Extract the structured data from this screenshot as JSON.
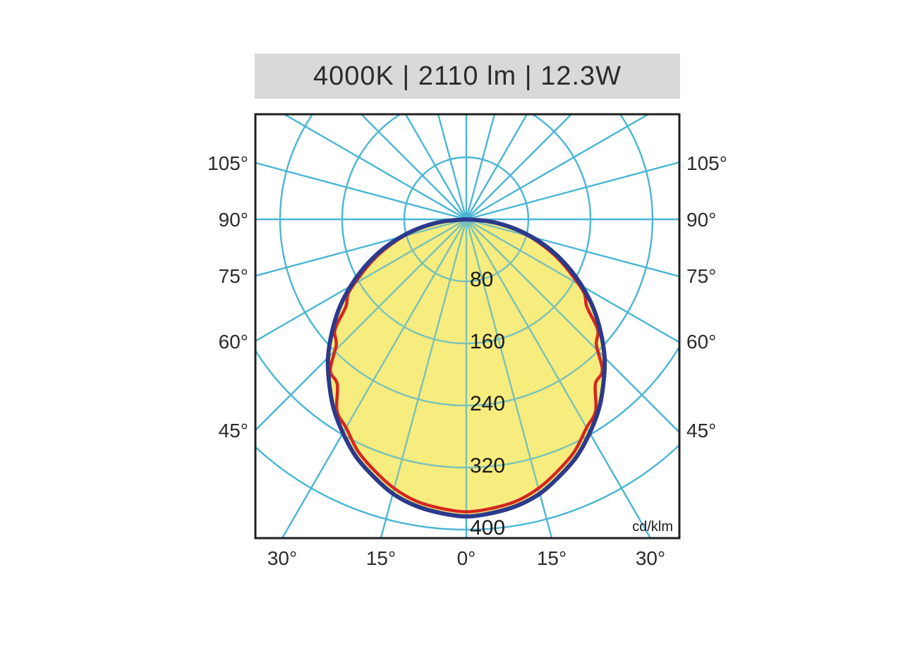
{
  "title_bar": {
    "label": "4000K | 2110 lm | 12.3W"
  },
  "chart_data": {
    "type": "polar_photometric",
    "title": "4000K | 2110 lm | 12.3W",
    "unit_label": "cd/klm",
    "angle_grid_step_deg": 15,
    "side_angle_values": [
      105,
      90,
      75,
      60,
      45
    ],
    "side_angle_labels": [
      "105°",
      "90°",
      "75°",
      "60°",
      "45°"
    ],
    "bottom_angle_values": [
      -30,
      -15,
      0,
      15,
      30
    ],
    "bottom_angle_labels": [
      "30°",
      "15°",
      "0°",
      "15°",
      "30°"
    ],
    "radial_ticks": [
      80,
      160,
      240,
      320,
      400
    ],
    "radial_tick_labels": [
      "80",
      "160",
      "240",
      "320",
      "400"
    ],
    "radial_axis_max": 400,
    "colors": {
      "grid": "#49b6d4",
      "grid_over_fill": "#79c1b8",
      "fill": "#f7ec7e",
      "curve_blue": "#2b3a8c",
      "curve_red": "#d4271e",
      "title_bar_bg": "#d9d9d9",
      "text": "#2b2b2b",
      "border": "#1f1f1f"
    },
    "series": [
      {
        "id": "series_blue",
        "color": "#2b3a8c",
        "filled": true,
        "mirrored": true,
        "angles_deg": [
          0,
          5,
          10,
          15,
          20,
          25,
          30,
          35,
          40,
          45,
          50,
          55,
          60,
          65,
          70,
          75,
          80,
          85,
          90
        ],
        "values": [
          383,
          380,
          375,
          366,
          352,
          337,
          318,
          298,
          275,
          252,
          226,
          200,
          172,
          144,
          116,
          87,
          58,
          29,
          0
        ]
      },
      {
        "id": "series_red",
        "color": "#d4271e",
        "filled": false,
        "mirrored": true,
        "angles_deg": [
          0,
          5,
          10,
          15,
          20,
          25,
          30,
          34,
          38,
          42,
          46,
          50,
          54,
          58,
          62,
          66,
          70,
          75,
          80,
          85,
          90
        ],
        "values": [
          377,
          374,
          369,
          359,
          345,
          330,
          310,
          298,
          270,
          262,
          233,
          221,
          192,
          179,
          155,
          133,
          111,
          83,
          55,
          27,
          0
        ]
      }
    ]
  }
}
